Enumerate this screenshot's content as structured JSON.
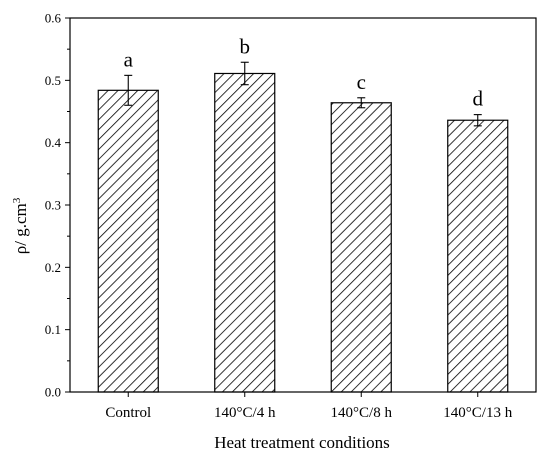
{
  "chart_data": {
    "type": "bar",
    "title": "",
    "xlabel": "Heat treatment conditions",
    "ylabel": "ρ/ g.cm",
    "ylabel_superscript": "3",
    "categories": [
      "Control",
      "140°C/4 h",
      "140°C/8 h",
      "140°C/13 h"
    ],
    "values": [
      0.484,
      0.511,
      0.464,
      0.436
    ],
    "errors": [
      0.024,
      0.018,
      0.008,
      0.009
    ],
    "annotations": [
      "a",
      "b",
      "c",
      "d"
    ],
    "ylim": [
      0.0,
      0.6
    ],
    "yticks": [
      "0.0",
      "0.1",
      "0.2",
      "0.3",
      "0.4",
      "0.5",
      "0.6"
    ],
    "grid": false,
    "legend": "none",
    "bar_fill": "hatched",
    "colors": {
      "bar_stroke": "#000000",
      "hatch": "#000000",
      "background": "#ffffff"
    }
  }
}
